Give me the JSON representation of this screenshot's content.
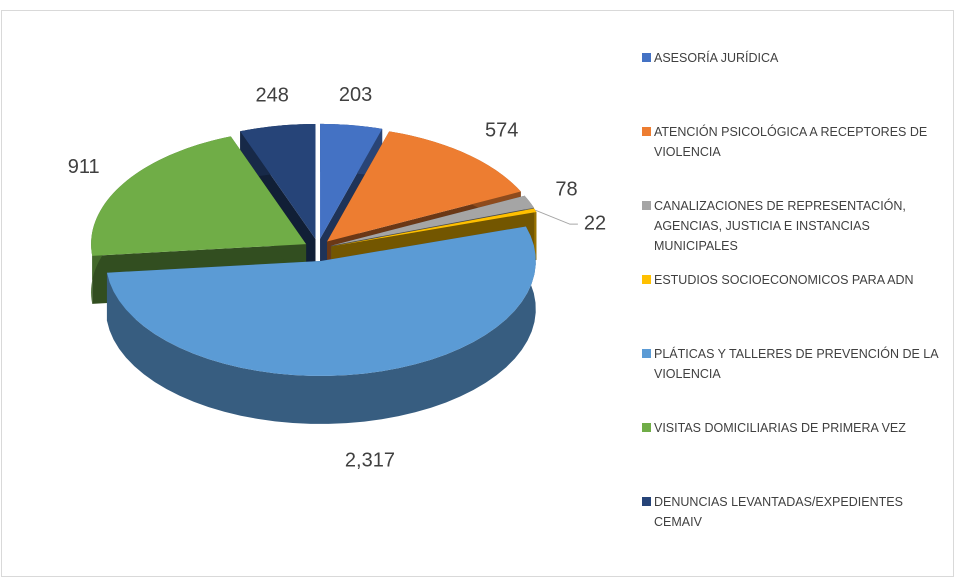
{
  "chart_data": {
    "type": "pie3d",
    "categories": [
      "ASESORÍA JURÍDICA",
      "ATENCIÓN PSICOLÓGICA A RECEPTORES DE VIOLENCIA",
      "CANALIZACIONES DE REPRESENTACIÓN, AGENCIAS, JUSTICIA E INSTANCIAS MUNICIPALES",
      "ESTUDIOS SOCIOECONOMICOS PARA ADN",
      "PLÁTICAS Y TALLERES DE PREVENCIÓN DE LA VIOLENCIA",
      "VISITAS DOMICILIARIAS DE PRIMERA VEZ",
      "DENUNCIAS LEVANTADAS/EXPEDIENTES CEMAIV"
    ],
    "values": [
      203,
      574,
      78,
      22,
      2317,
      911,
      248
    ],
    "value_labels": [
      "203",
      "574",
      "78",
      "22",
      "2,317",
      "911",
      "248"
    ],
    "colors": [
      "#4472c4",
      "#ed7d31",
      "#a5a5a5",
      "#ffc000",
      "#5b9bd5",
      "#70ad47",
      "#264478"
    ],
    "legend": "right"
  }
}
